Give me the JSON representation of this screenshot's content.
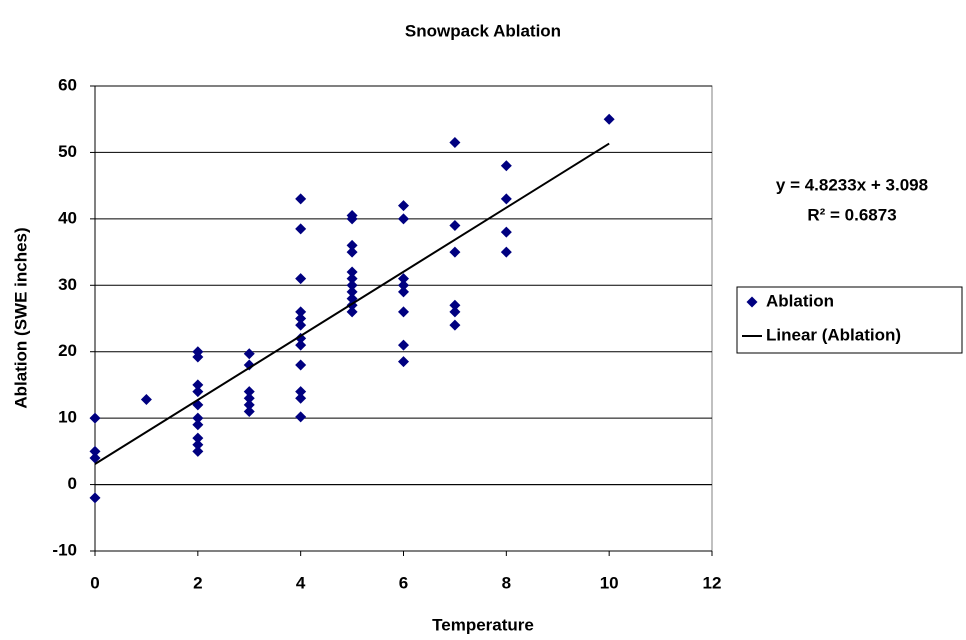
{
  "chart_data": {
    "type": "scatter",
    "title": "Snowpack Ablation",
    "x_label": "Temperature",
    "y_label": "Ablation (SWE inches)",
    "series": [
      {
        "name": "Ablation",
        "color": "#000080",
        "x": [
          0,
          0,
          0,
          0,
          1,
          2,
          2,
          2,
          2,
          2,
          2,
          2,
          2,
          2,
          2,
          3,
          3,
          3,
          3,
          3,
          3,
          4,
          4,
          4,
          4,
          4,
          4,
          4,
          4,
          4,
          4,
          4,
          4,
          5,
          5,
          5,
          5,
          5,
          5,
          5,
          5,
          5,
          5,
          5,
          6,
          6,
          6,
          6,
          6,
          6,
          6,
          6,
          7,
          7,
          7,
          7,
          7,
          7,
          8,
          8,
          8,
          8,
          10
        ],
        "values": [
          10,
          5,
          4,
          -2,
          12.8,
          20,
          19.2,
          15,
          14,
          12,
          10,
          9,
          7,
          6,
          5,
          19.7,
          18,
          14,
          13,
          12,
          11,
          43,
          38.5,
          31,
          26,
          25,
          24,
          22,
          21,
          18,
          14,
          13,
          10.2,
          40.5,
          40,
          36,
          35,
          32,
          31,
          30,
          29,
          28,
          27,
          26,
          42,
          40,
          31,
          30,
          29,
          26,
          21,
          18.5,
          51.5,
          39,
          35,
          27,
          26,
          24,
          48,
          43,
          38,
          35,
          55
        ]
      }
    ],
    "trendline": {
      "name": "Linear (Ablation)",
      "slope": 4.8233,
      "intercept": 3.098,
      "x": [
        0,
        10
      ],
      "color": "#000000"
    },
    "annotations": [
      "y = 4.8233x + 3.098",
      "R² = 0.6873"
    ],
    "xlim": [
      0,
      12
    ],
    "xticks": [
      0,
      2,
      4,
      6,
      8,
      10,
      12
    ],
    "ylim": [
      -10,
      60
    ],
    "yticks": [
      -10,
      0,
      10,
      20,
      30,
      40,
      50,
      60
    ],
    "grid": true,
    "legend": "right"
  }
}
